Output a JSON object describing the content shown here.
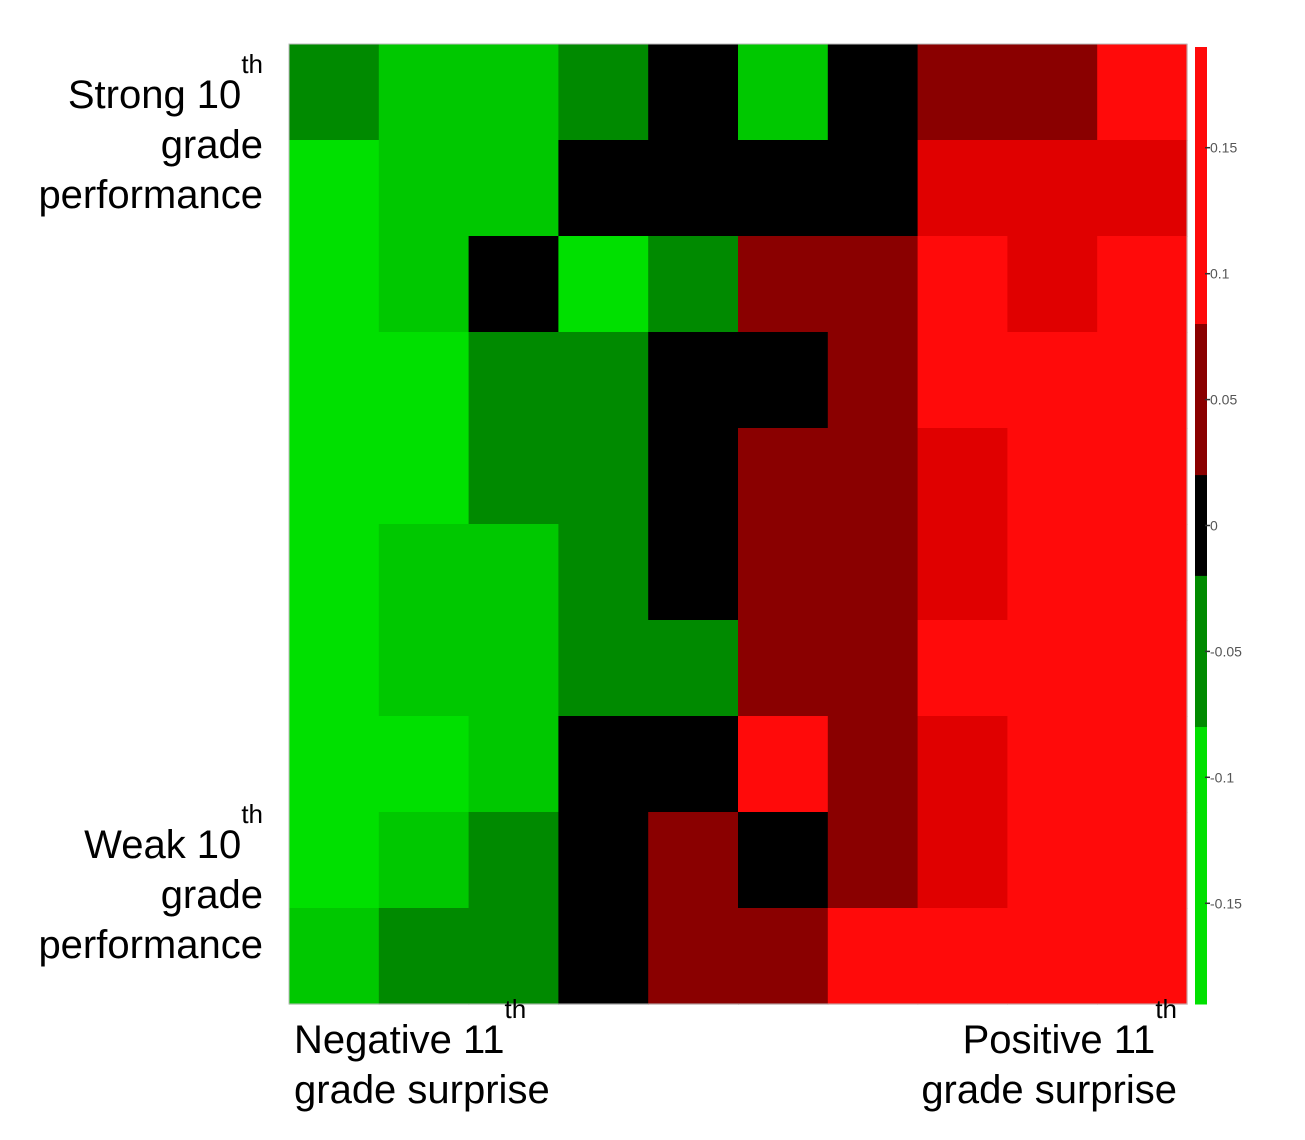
{
  "chart_data": {
    "type": "heatmap",
    "rows": 10,
    "cols": 10,
    "values": [
      [
        -0.07,
        -0.1,
        -0.1,
        -0.05,
        0.0,
        -0.1,
        0.0,
        0.05,
        0.05,
        0.18
      ],
      [
        -0.17,
        -0.1,
        -0.08,
        0.0,
        0.0,
        0.0,
        0.0,
        0.12,
        0.12,
        0.1
      ],
      [
        -0.14,
        -0.1,
        0.0,
        -0.17,
        -0.06,
        0.05,
        0.05,
        0.15,
        0.13,
        0.15
      ],
      [
        -0.14,
        -0.13,
        -0.06,
        -0.06,
        0.0,
        0.0,
        0.05,
        0.15,
        0.17,
        0.15
      ],
      [
        -0.14,
        -0.13,
        -0.06,
        -0.06,
        0.0,
        0.05,
        0.05,
        0.1,
        0.17,
        0.15
      ],
      [
        -0.14,
        -0.1,
        -0.1,
        -0.06,
        0.0,
        0.05,
        0.05,
        0.1,
        0.15,
        0.15
      ],
      [
        -0.14,
        -0.1,
        -0.1,
        -0.06,
        -0.06,
        0.05,
        0.05,
        0.15,
        0.15,
        0.15
      ],
      [
        -0.14,
        -0.14,
        -0.1,
        0.0,
        0.0,
        0.15,
        0.05,
        0.1,
        0.15,
        0.15
      ],
      [
        -0.14,
        -0.1,
        -0.06,
        0.0,
        0.05,
        0.0,
        0.05,
        0.1,
        0.15,
        0.15
      ],
      [
        -0.1,
        -0.06,
        -0.06,
        0.0,
        0.05,
        0.05,
        0.15,
        0.17,
        0.17,
        0.17
      ]
    ],
    "colorbar": {
      "ticks": [
        0.15,
        0.1,
        0.05,
        0,
        -0.05,
        -0.1,
        -0.15
      ],
      "tick_labels": [
        "0.15",
        "0.1",
        "0.05",
        "0",
        "-0.05",
        "-0.1",
        "-0.15"
      ],
      "range": [
        -0.19,
        0.19
      ]
    },
    "colors": {
      "bright_green": "#00e000",
      "green": "#00c800",
      "dark_green": "#008a00",
      "black": "#000000",
      "dark_red": "#8a0000",
      "red": "#e00000",
      "bright_red": "#ff0a0a"
    }
  },
  "labels": {
    "strong": {
      "line1": "Strong 10",
      "sup": "th",
      "line2": "grade",
      "line3": "performance"
    },
    "weak": {
      "line1": "Weak 10",
      "sup": "th",
      "line2": "grade",
      "line3": "performance"
    },
    "negative": {
      "line1": "Negative 11",
      "sup": "th",
      "line2": "grade surprise"
    },
    "positive": {
      "line1": "Positive 11",
      "sup": "th",
      "line2": "grade surprise"
    }
  }
}
